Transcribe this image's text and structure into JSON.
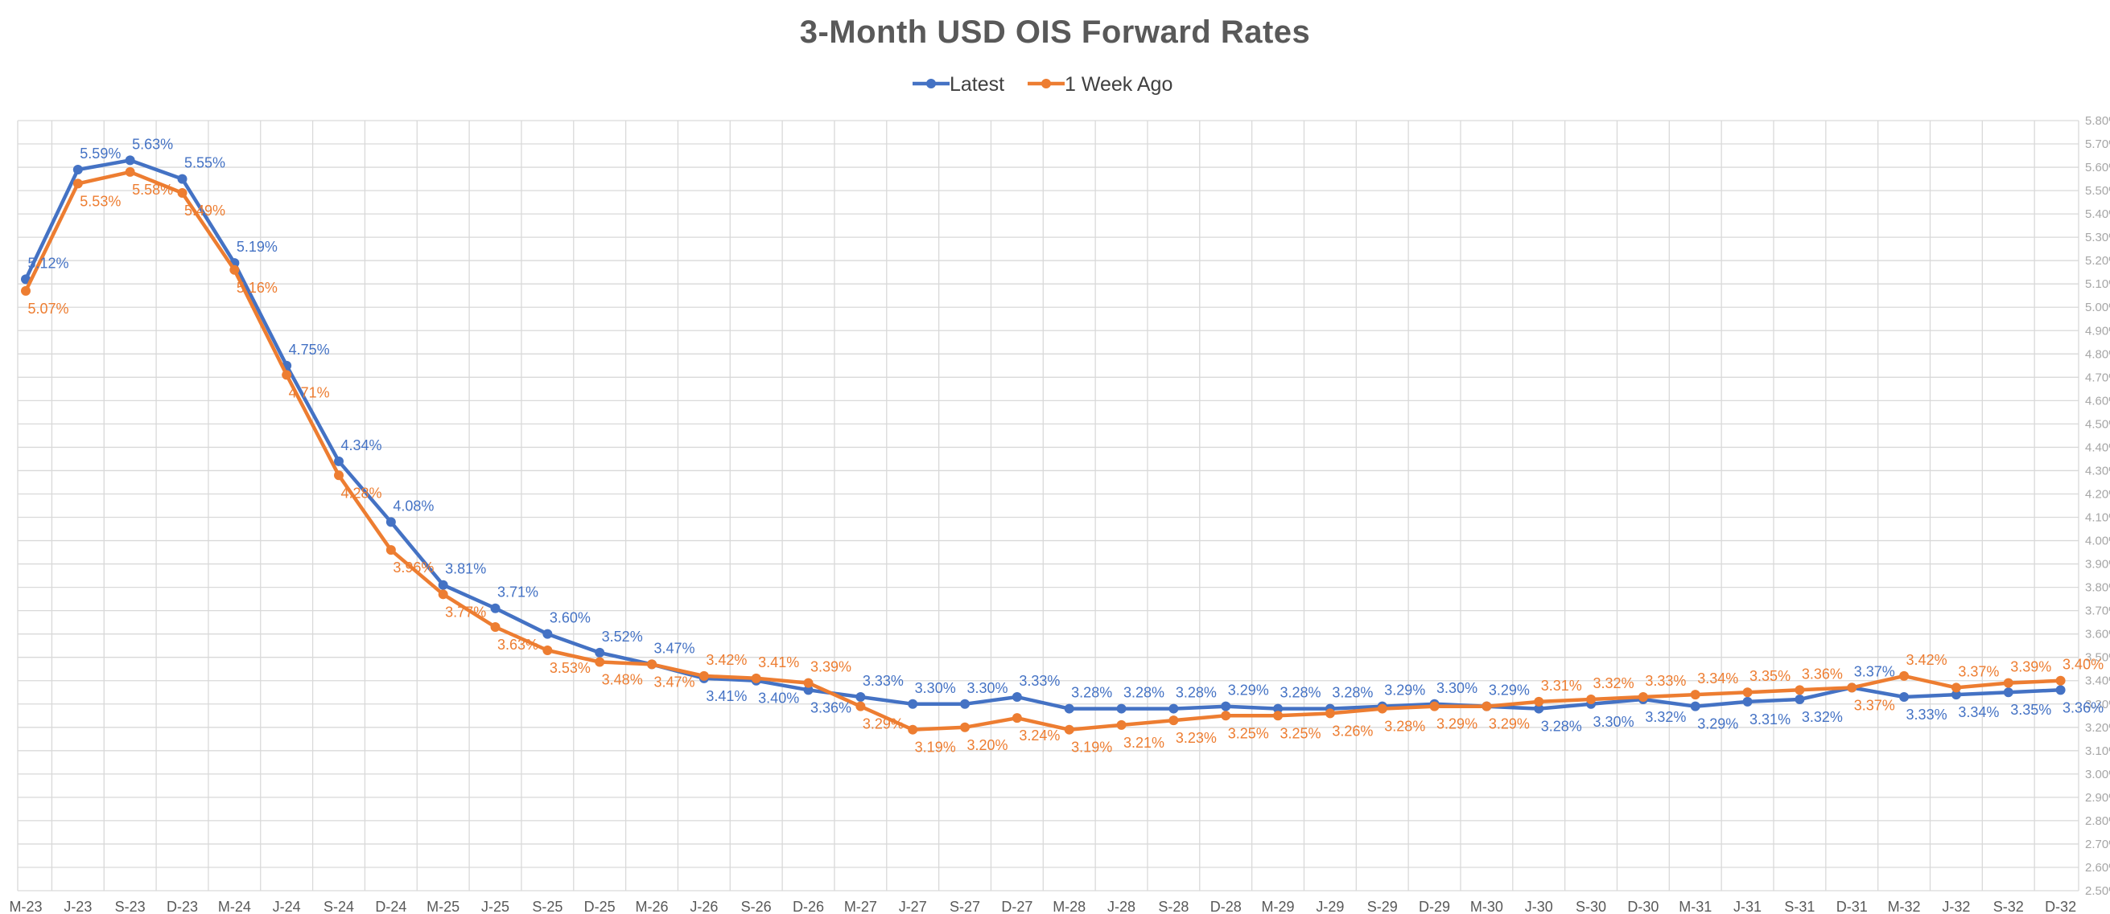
{
  "chart_data": {
    "type": "line",
    "title": "3-Month USD OIS Forward Rates",
    "xlabel": "",
    "ylabel": "",
    "ylim": [
      2.5,
      5.8
    ],
    "y_tick_step": 0.1,
    "y_tick_format": "percent_2dp",
    "y_axis_side": "right",
    "grid": true,
    "legend_position": "top-center",
    "categories": [
      "M-23",
      "J-23",
      "S-23",
      "D-23",
      "M-24",
      "J-24",
      "S-24",
      "D-24",
      "M-25",
      "J-25",
      "S-25",
      "D-25",
      "M-26",
      "J-26",
      "S-26",
      "D-26",
      "M-27",
      "J-27",
      "S-27",
      "D-27",
      "M-28",
      "J-28",
      "S-28",
      "D-28",
      "M-29",
      "J-29",
      "S-29",
      "D-29",
      "M-30",
      "J-30",
      "S-30",
      "D-30",
      "M-31",
      "J-31",
      "S-31",
      "D-31",
      "M-32",
      "J-32",
      "S-32",
      "D-32"
    ],
    "series": [
      {
        "name": "Latest",
        "color": "#4472c4",
        "values": [
          5.12,
          5.59,
          5.63,
          5.55,
          5.19,
          4.75,
          4.34,
          4.08,
          3.81,
          3.71,
          3.6,
          3.52,
          3.47,
          3.41,
          3.4,
          3.36,
          3.33,
          3.3,
          3.3,
          3.33,
          3.28,
          3.28,
          3.28,
          3.29,
          3.28,
          3.28,
          3.29,
          3.3,
          3.29,
          3.28,
          3.3,
          3.32,
          3.29,
          3.31,
          3.32,
          3.37,
          3.33,
          3.34,
          3.35,
          3.36
        ],
        "labels": [
          "5.12%",
          "5.59%",
          "5.63%",
          "5.55%",
          "5.19%",
          "4.75%",
          "4.34%",
          "4.08%",
          "3.81%",
          "3.71%",
          "3.60%",
          "3.52%",
          "3.47%",
          "3.41%",
          "3.40%",
          "3.36%",
          "3.33%",
          "3.30%",
          "3.30%",
          "3.33%",
          "3.28%",
          "3.28%",
          "3.28%",
          "3.29%",
          "3.28%",
          "3.28%",
          "3.29%",
          "3.30%",
          "3.29%",
          "3.28%",
          "3.30%",
          "3.32%",
          "3.29%",
          "3.31%",
          "3.32%",
          "3.37%",
          "3.33%",
          "3.34%",
          "3.35%",
          "3.36%"
        ]
      },
      {
        "name": "1 Week Ago",
        "color": "#ed7d31",
        "values": [
          5.07,
          5.53,
          5.58,
          5.49,
          5.16,
          4.71,
          4.28,
          3.96,
          3.77,
          3.63,
          3.53,
          3.48,
          3.47,
          3.42,
          3.41,
          3.39,
          3.29,
          3.19,
          3.2,
          3.24,
          3.19,
          3.21,
          3.23,
          3.25,
          3.25,
          3.26,
          3.28,
          3.29,
          3.29,
          3.31,
          3.32,
          3.33,
          3.34,
          3.35,
          3.36,
          3.37,
          3.42,
          3.37,
          3.39,
          3.4
        ],
        "labels": [
          "5.07%",
          "5.53%",
          "5.58%",
          "5.49%",
          "5.16%",
          "4.71%",
          "4.28%",
          "3.96%",
          "3.77%",
          "3.63%",
          "3.53%",
          "3.48%",
          "3.47%",
          "3.42%",
          "3.41%",
          "3.39%",
          "3.29%",
          "3.19%",
          "3.20%",
          "3.24%",
          "3.19%",
          "3.21%",
          "3.23%",
          "3.25%",
          "3.25%",
          "3.26%",
          "3.28%",
          "3.29%",
          "3.29%",
          "3.31%",
          "3.32%",
          "3.33%",
          "3.34%",
          "3.35%",
          "3.36%",
          "3.37%",
          "3.42%",
          "3.37%",
          "3.39%",
          "3.40%"
        ]
      }
    ]
  }
}
